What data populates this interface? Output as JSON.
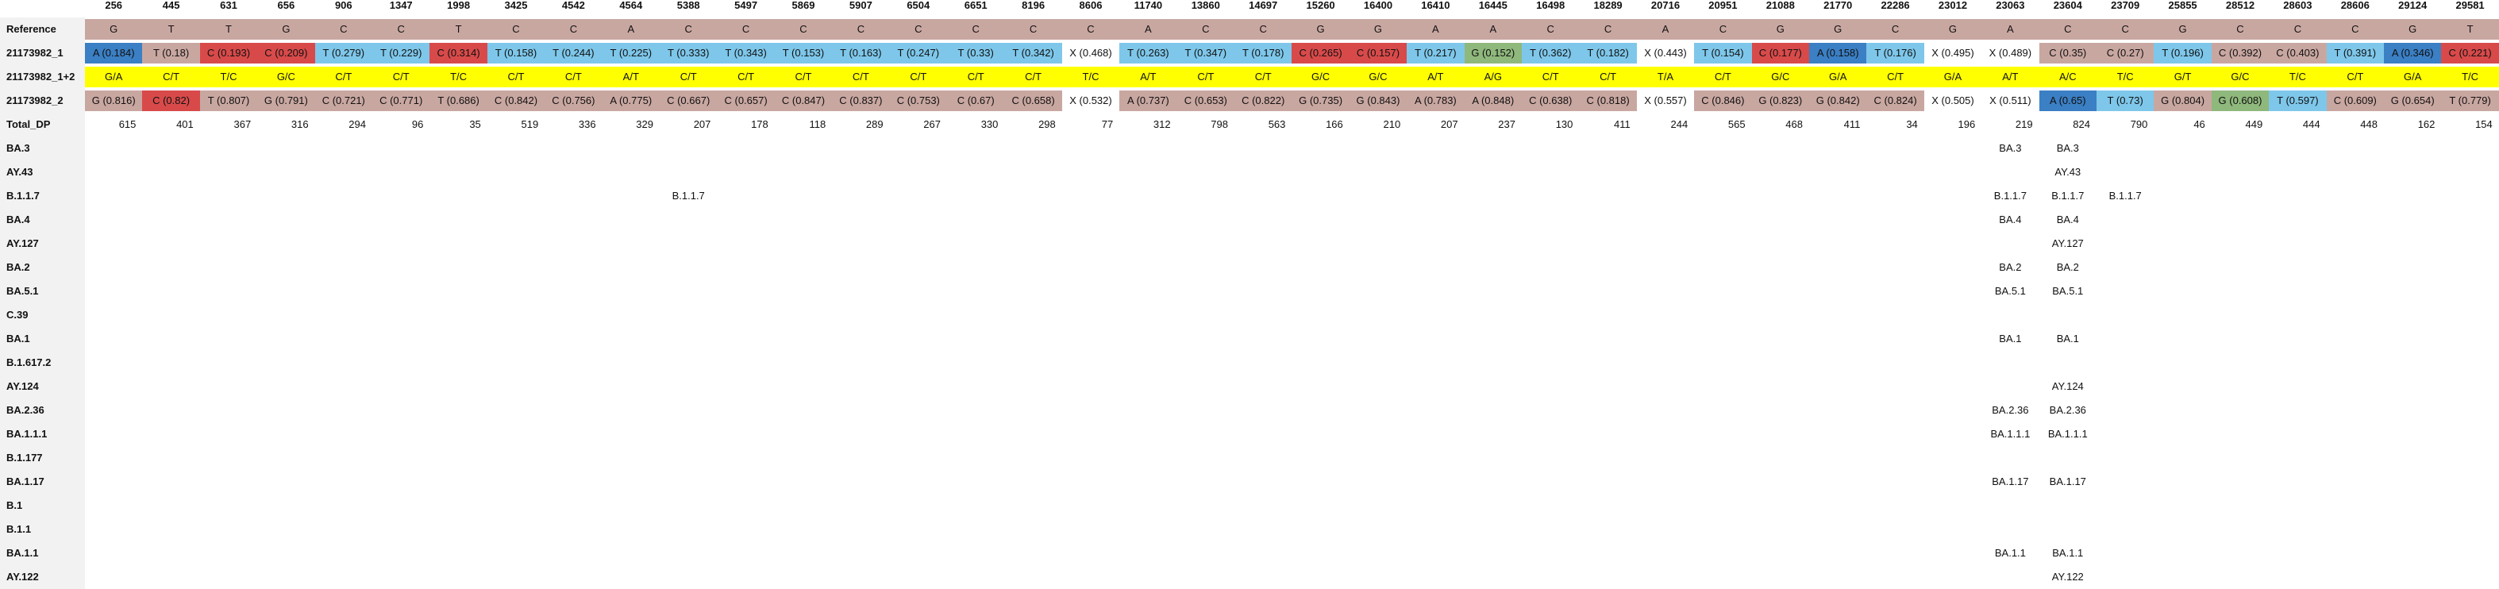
{
  "positions": [
    "256",
    "445",
    "631",
    "656",
    "906",
    "1347",
    "1998",
    "3425",
    "4542",
    "4564",
    "5388",
    "5497",
    "5869",
    "5907",
    "6504",
    "6651",
    "8196",
    "8606",
    "11740",
    "13860",
    "14697",
    "15260",
    "16400",
    "16410",
    "16445",
    "16498",
    "18289",
    "20716",
    "20951",
    "21088",
    "21770",
    "22286",
    "23012",
    "23063",
    "23604",
    "23709",
    "25855",
    "28512",
    "28603",
    "28606",
    "29124",
    "29581"
  ],
  "colors": {
    "ref": "#c9a7a1",
    "A": "#3b7fc4",
    "T": "#7ec7ea",
    "C": "#d84a4a",
    "G": "#8fb87c",
    "X": "#ffffff",
    "yellow": "#ffff00",
    "label_bg": "#f2f2f2",
    "dark_blue": "#2e65a8",
    "red_dark": "#c94040"
  },
  "rows": [
    {
      "label": "Reference",
      "type": "ref",
      "cells": [
        "G",
        "T",
        "T",
        "G",
        "C",
        "C",
        "T",
        "C",
        "C",
        "A",
        "C",
        "C",
        "C",
        "C",
        "C",
        "C",
        "C",
        "C",
        "A",
        "C",
        "C",
        "G",
        "G",
        "A",
        "A",
        "C",
        "C",
        "A",
        "C",
        "G",
        "G",
        "C",
        "G",
        "A",
        "C",
        "C",
        "G",
        "C",
        "C",
        "C",
        "G",
        "T"
      ]
    },
    {
      "label": "21173982_1",
      "type": "sample",
      "cells": [
        {
          "t": "A (0.184)",
          "c": "A"
        },
        {
          "t": "T (0.18)",
          "c": "ref"
        },
        {
          "t": "C (0.193)",
          "c": "C"
        },
        {
          "t": "C (0.209)",
          "c": "C"
        },
        {
          "t": "T (0.279)",
          "c": "T"
        },
        {
          "t": "T (0.229)",
          "c": "T"
        },
        {
          "t": "C (0.314)",
          "c": "C"
        },
        {
          "t": "T (0.158)",
          "c": "T"
        },
        {
          "t": "T (0.244)",
          "c": "T"
        },
        {
          "t": "T (0.225)",
          "c": "T"
        },
        {
          "t": "T (0.333)",
          "c": "T"
        },
        {
          "t": "T (0.343)",
          "c": "T"
        },
        {
          "t": "T (0.153)",
          "c": "T"
        },
        {
          "t": "T (0.163)",
          "c": "T"
        },
        {
          "t": "T (0.247)",
          "c": "T"
        },
        {
          "t": "T (0.33)",
          "c": "T"
        },
        {
          "t": "T (0.342)",
          "c": "T"
        },
        {
          "t": "X (0.468)",
          "c": "X"
        },
        {
          "t": "T (0.263)",
          "c": "T"
        },
        {
          "t": "T (0.347)",
          "c": "T"
        },
        {
          "t": "T (0.178)",
          "c": "T"
        },
        {
          "t": "C (0.265)",
          "c": "C"
        },
        {
          "t": "C (0.157)",
          "c": "C"
        },
        {
          "t": "T (0.217)",
          "c": "T"
        },
        {
          "t": "G (0.152)",
          "c": "G"
        },
        {
          "t": "T (0.362)",
          "c": "T"
        },
        {
          "t": "T (0.182)",
          "c": "T"
        },
        {
          "t": "X (0.443)",
          "c": "X"
        },
        {
          "t": "T (0.154)",
          "c": "T"
        },
        {
          "t": "C (0.177)",
          "c": "C"
        },
        {
          "t": "A (0.158)",
          "c": "A"
        },
        {
          "t": "T (0.176)",
          "c": "T"
        },
        {
          "t": "X (0.495)",
          "c": "X"
        },
        {
          "t": "X (0.489)",
          "c": "X"
        },
        {
          "t": "C (0.35)",
          "c": "ref"
        },
        {
          "t": "C (0.27)",
          "c": "ref"
        },
        {
          "t": "T (0.196)",
          "c": "T"
        },
        {
          "t": "C (0.392)",
          "c": "ref"
        },
        {
          "t": "C (0.403)",
          "c": "ref"
        },
        {
          "t": "T (0.391)",
          "c": "T"
        },
        {
          "t": "A (0.346)",
          "c": "A"
        },
        {
          "t": "C (0.221)",
          "c": "C"
        }
      ]
    },
    {
      "label": "21173982_1+2",
      "type": "pair",
      "cells": [
        "G/A",
        "C/T",
        "T/C",
        "G/C",
        "C/T",
        "C/T",
        "T/C",
        "C/T",
        "C/T",
        "A/T",
        "C/T",
        "C/T",
        "C/T",
        "C/T",
        "C/T",
        "C/T",
        "C/T",
        "T/C",
        "A/T",
        "C/T",
        "C/T",
        "G/C",
        "G/C",
        "A/T",
        "A/G",
        "C/T",
        "C/T",
        "T/A",
        "C/T",
        "G/C",
        "G/A",
        "C/T",
        "G/A",
        "A/T",
        "A/C",
        "T/C",
        "G/T",
        "G/C",
        "T/C",
        "C/T",
        "G/A",
        "T/C"
      ]
    },
    {
      "label": "21173982_2",
      "type": "sample",
      "cells": [
        {
          "t": "G (0.816)",
          "c": "ref"
        },
        {
          "t": "C (0.82)",
          "c": "C"
        },
        {
          "t": "T (0.807)",
          "c": "ref"
        },
        {
          "t": "G (0.791)",
          "c": "ref"
        },
        {
          "t": "C (0.721)",
          "c": "ref"
        },
        {
          "t": "C (0.771)",
          "c": "ref"
        },
        {
          "t": "T (0.686)",
          "c": "ref"
        },
        {
          "t": "C (0.842)",
          "c": "ref"
        },
        {
          "t": "C (0.756)",
          "c": "ref"
        },
        {
          "t": "A (0.775)",
          "c": "ref"
        },
        {
          "t": "C (0.667)",
          "c": "ref"
        },
        {
          "t": "C (0.657)",
          "c": "ref"
        },
        {
          "t": "C (0.847)",
          "c": "ref"
        },
        {
          "t": "C (0.837)",
          "c": "ref"
        },
        {
          "t": "C (0.753)",
          "c": "ref"
        },
        {
          "t": "C (0.67)",
          "c": "ref"
        },
        {
          "t": "C (0.658)",
          "c": "ref"
        },
        {
          "t": "X (0.532)",
          "c": "X"
        },
        {
          "t": "A (0.737)",
          "c": "ref"
        },
        {
          "t": "C (0.653)",
          "c": "ref"
        },
        {
          "t": "C (0.822)",
          "c": "ref"
        },
        {
          "t": "G (0.735)",
          "c": "ref"
        },
        {
          "t": "G (0.843)",
          "c": "ref"
        },
        {
          "t": "A (0.783)",
          "c": "ref"
        },
        {
          "t": "A (0.848)",
          "c": "ref"
        },
        {
          "t": "C (0.638)",
          "c": "ref"
        },
        {
          "t": "C (0.818)",
          "c": "ref"
        },
        {
          "t": "X (0.557)",
          "c": "X"
        },
        {
          "t": "C (0.846)",
          "c": "ref"
        },
        {
          "t": "G (0.823)",
          "c": "ref"
        },
        {
          "t": "G (0.842)",
          "c": "ref"
        },
        {
          "t": "C (0.824)",
          "c": "ref"
        },
        {
          "t": "X (0.505)",
          "c": "X"
        },
        {
          "t": "X (0.511)",
          "c": "X"
        },
        {
          "t": "A (0.65)",
          "c": "A"
        },
        {
          "t": "T (0.73)",
          "c": "T"
        },
        {
          "t": "G (0.804)",
          "c": "ref"
        },
        {
          "t": "G (0.608)",
          "c": "G"
        },
        {
          "t": "T (0.597)",
          "c": "T"
        },
        {
          "t": "C (0.609)",
          "c": "ref"
        },
        {
          "t": "G (0.654)",
          "c": "ref"
        },
        {
          "t": "T (0.779)",
          "c": "ref"
        }
      ]
    },
    {
      "label": "Total_DP",
      "type": "num",
      "cells": [
        "615",
        "401",
        "367",
        "316",
        "294",
        "96",
        "35",
        "519",
        "336",
        "329",
        "207",
        "178",
        "118",
        "289",
        "267",
        "330",
        "298",
        "77",
        "312",
        "798",
        "563",
        "166",
        "210",
        "207",
        "237",
        "130",
        "411",
        "244",
        "565",
        "468",
        "411",
        "34",
        "196",
        "219",
        "824",
        "790",
        "46",
        "449",
        "444",
        "448",
        "162",
        "154"
      ]
    }
  ],
  "lineages": [
    {
      "label": "BA.3",
      "cells": {
        "33": "BA.3",
        "34": "BA.3"
      }
    },
    {
      "label": "AY.43",
      "cells": {
        "34": "AY.43"
      }
    },
    {
      "label": "B.1.1.7",
      "cells": {
        "10": "B.1.1.7",
        "33": "B.1.1.7",
        "34": "B.1.1.7",
        "35": "B.1.1.7"
      }
    },
    {
      "label": "BA.4",
      "cells": {
        "33": "BA.4",
        "34": "BA.4"
      }
    },
    {
      "label": "AY.127",
      "cells": {
        "34": "AY.127"
      }
    },
    {
      "label": "BA.2",
      "cells": {
        "33": "BA.2",
        "34": "BA.2"
      }
    },
    {
      "label": "BA.5.1",
      "cells": {
        "33": "BA.5.1",
        "34": "BA.5.1"
      }
    },
    {
      "label": "C.39",
      "cells": {}
    },
    {
      "label": "BA.1",
      "cells": {
        "33": "BA.1",
        "34": "BA.1"
      }
    },
    {
      "label": "B.1.617.2",
      "cells": {}
    },
    {
      "label": "AY.124",
      "cells": {
        "34": "AY.124"
      }
    },
    {
      "label": "BA.2.36",
      "cells": {
        "33": "BA.2.36",
        "34": "BA.2.36"
      }
    },
    {
      "label": "BA.1.1.1",
      "cells": {
        "33": "BA.1.1.1",
        "34": "BA.1.1.1"
      }
    },
    {
      "label": "B.1.177",
      "cells": {}
    },
    {
      "label": "BA.1.17",
      "cells": {
        "33": "BA.1.17",
        "34": "BA.1.17"
      }
    },
    {
      "label": "B.1",
      "cells": {}
    },
    {
      "label": "B.1.1",
      "cells": {}
    },
    {
      "label": "BA.1.1",
      "cells": {
        "33": "BA.1.1",
        "34": "BA.1.1"
      }
    },
    {
      "label": "AY.122",
      "cells": {
        "34": "AY.122"
      }
    }
  ]
}
